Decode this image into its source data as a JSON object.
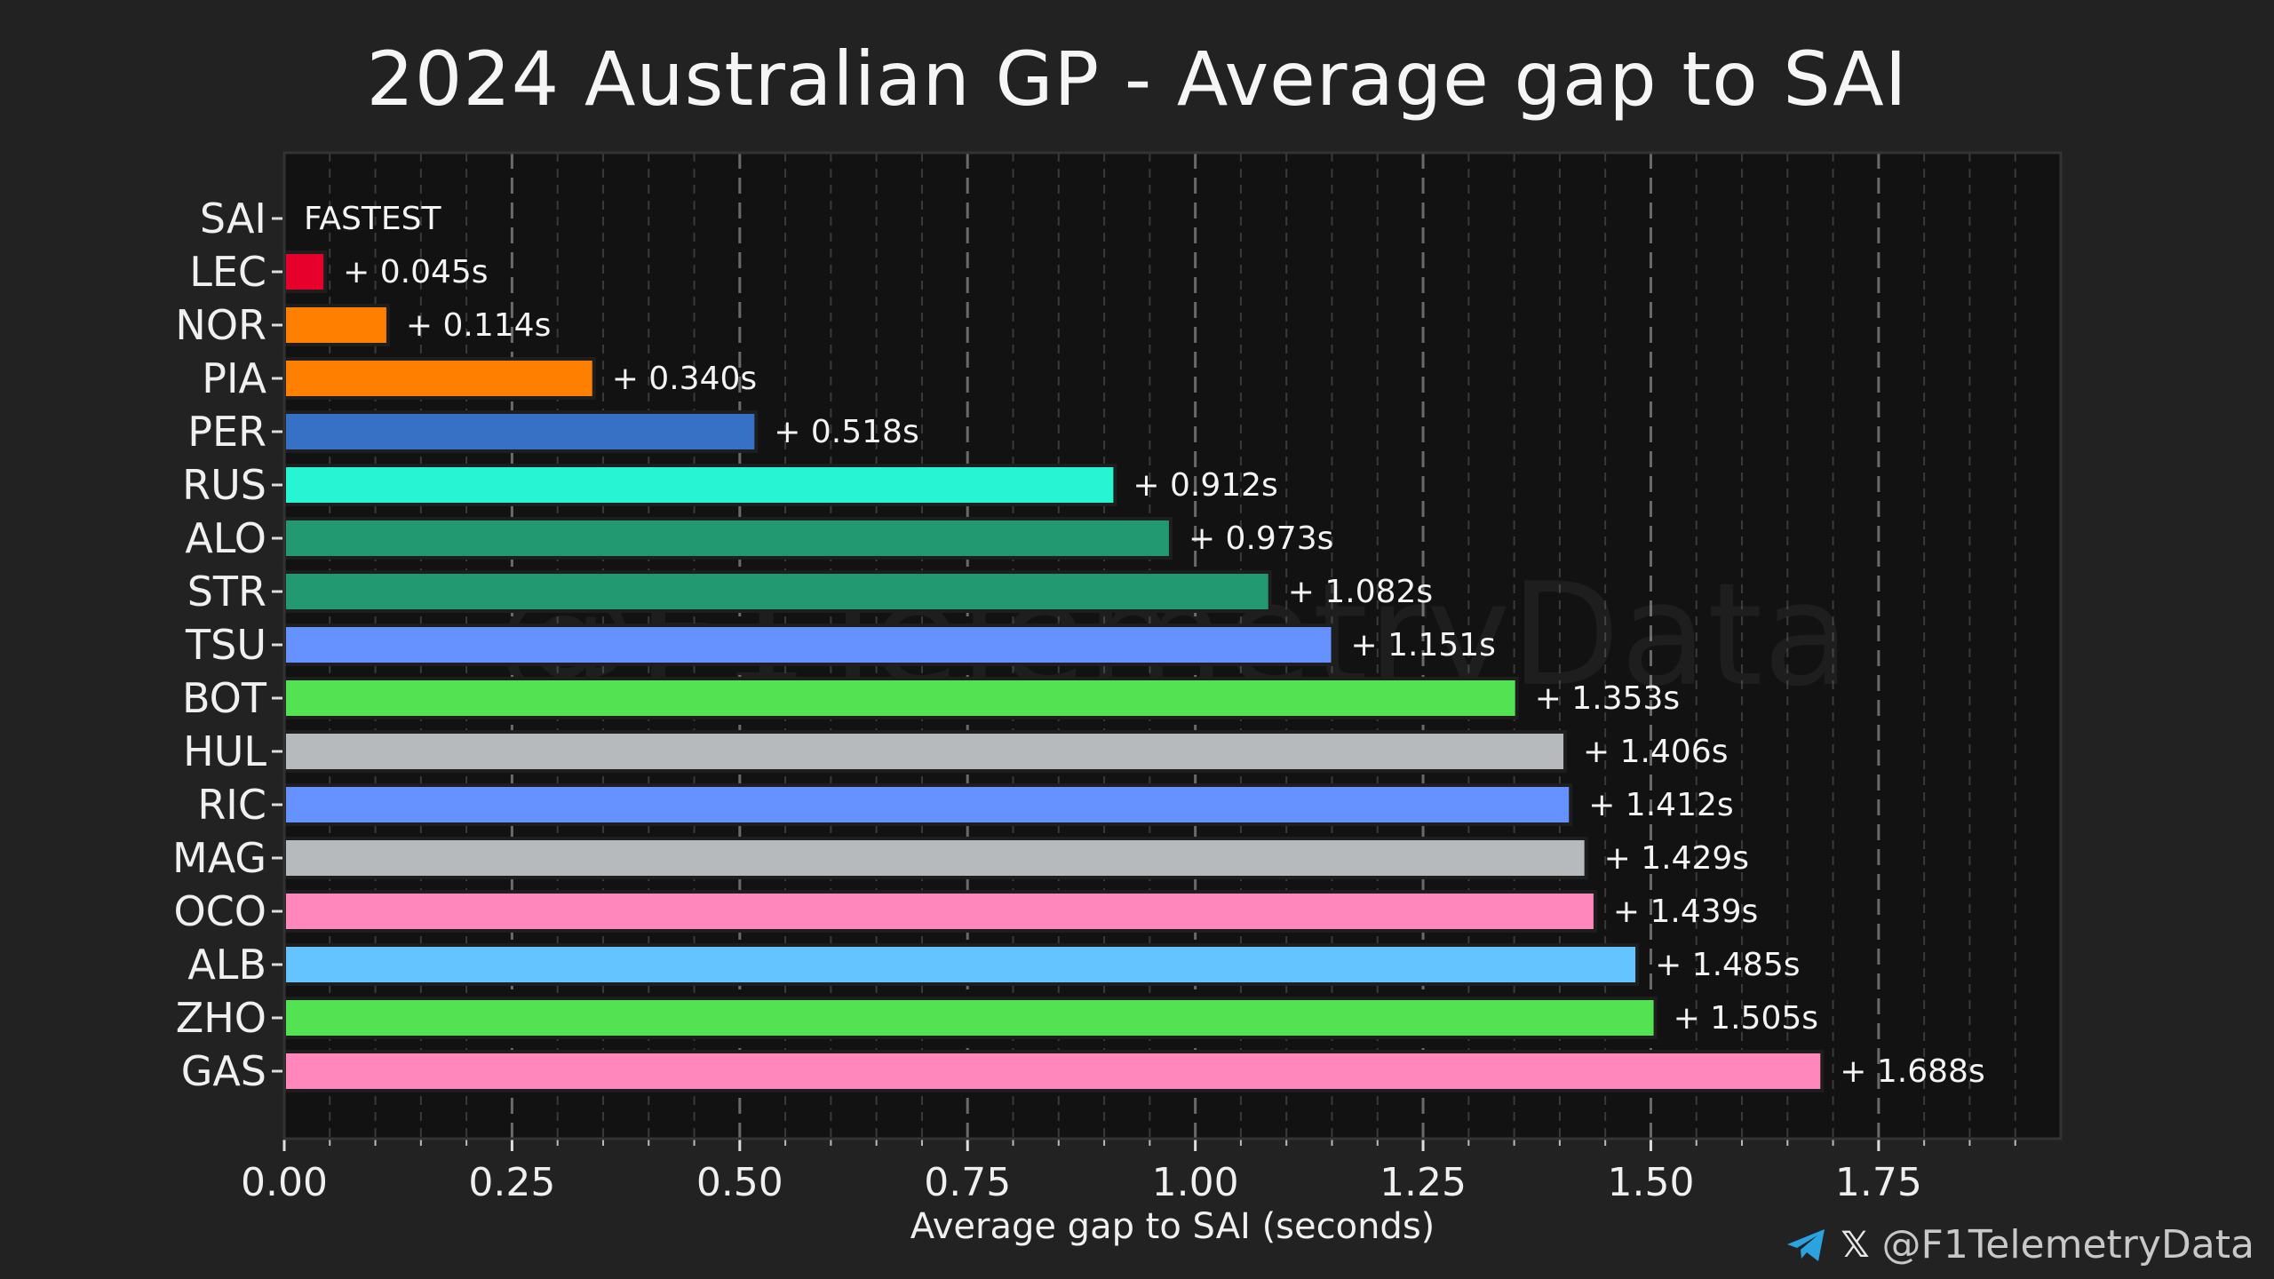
{
  "title": "2024 Australian GP - Average gap to SAI",
  "watermark": "@F1TelemetryData",
  "credit": {
    "telegram_icon": "telegram-icon",
    "x_icon_text": "𝕏",
    "handle": "@F1TelemetryData"
  },
  "chart_data": {
    "type": "bar",
    "orientation": "horizontal",
    "title": "2024 Australian GP - Average gap to SAI",
    "xlabel": "Average gap to SAI (seconds)",
    "ylabel": "",
    "xlim": [
      0,
      1.95
    ],
    "xticks": [
      0.0,
      0.25,
      0.5,
      0.75,
      1.0,
      1.25,
      1.5,
      1.75
    ],
    "xtick_labels": [
      "0.00",
      "0.25",
      "0.50",
      "0.75",
      "1.00",
      "1.25",
      "1.50",
      "1.75"
    ],
    "grid": true,
    "categories": [
      "SAI",
      "LEC",
      "NOR",
      "PIA",
      "PER",
      "RUS",
      "ALO",
      "STR",
      "TSU",
      "BOT",
      "HUL",
      "RIC",
      "MAG",
      "OCO",
      "ALB",
      "ZHO",
      "GAS"
    ],
    "values": [
      0.0,
      0.045,
      0.114,
      0.34,
      0.518,
      0.912,
      0.973,
      1.082,
      1.151,
      1.353,
      1.406,
      1.412,
      1.429,
      1.439,
      1.485,
      1.505,
      1.688
    ],
    "labels": [
      "FASTEST",
      "+ 0.045s",
      "+ 0.114s",
      "+ 0.340s",
      "+ 0.518s",
      "+ 0.912s",
      "+ 0.973s",
      "+ 1.082s",
      "+ 1.151s",
      "+ 1.353s",
      "+ 1.406s",
      "+ 1.412s",
      "+ 1.429s",
      "+ 1.439s",
      "+ 1.485s",
      "+ 1.505s",
      "+ 1.688s"
    ],
    "colors": [
      "#e8002d",
      "#e8002d",
      "#ff8000",
      "#ff8000",
      "#3671c6",
      "#27f4d2",
      "#229971",
      "#229971",
      "#6692ff",
      "#52e252",
      "#b6babd",
      "#6692ff",
      "#b6babd",
      "#ff87bc",
      "#64c4ff",
      "#52e252",
      "#ff87bc"
    ]
  }
}
